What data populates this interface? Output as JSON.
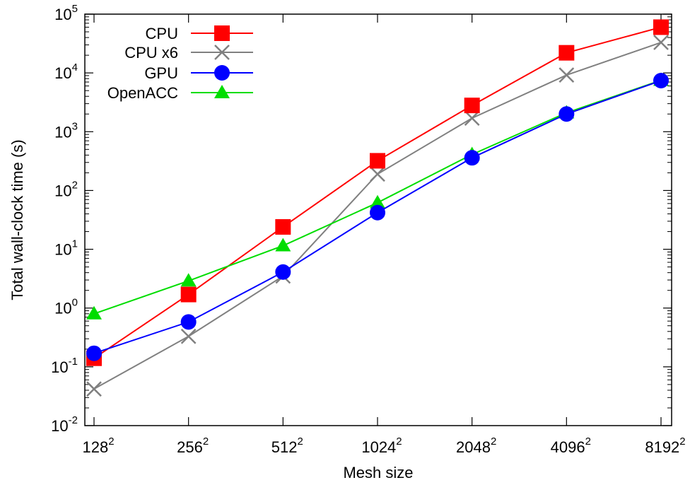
{
  "chart_data": {
    "type": "line",
    "title": "",
    "xlabel": "Mesh size",
    "ylabel": "Total wall-clock time (s)",
    "y_scale": "log",
    "ylim": [
      0.01,
      100000
    ],
    "grid": false,
    "legend_position": "top-left",
    "x_ticks": [
      {
        "base": "128",
        "sup": "2"
      },
      {
        "base": "256",
        "sup": "2"
      },
      {
        "base": "512",
        "sup": "2"
      },
      {
        "base": "1024",
        "sup": "2"
      },
      {
        "base": "2048",
        "sup": "2"
      },
      {
        "base": "4096",
        "sup": "2"
      },
      {
        "base": "8192",
        "sup": "2"
      }
    ],
    "y_ticks": [
      {
        "base": "10",
        "sup": "-2"
      },
      {
        "base": "10",
        "sup": "-1"
      },
      {
        "base": "10",
        "sup": "0"
      },
      {
        "base": "10",
        "sup": "1"
      },
      {
        "base": "10",
        "sup": "2"
      },
      {
        "base": "10",
        "sup": "3"
      },
      {
        "base": "10",
        "sup": "4"
      },
      {
        "base": "10",
        "sup": "5"
      }
    ],
    "series": [
      {
        "name": "CPU",
        "color": "#ff0000",
        "marker": "square",
        "values": [
          0.14,
          1.7,
          24,
          320,
          2800,
          22000,
          60000
        ]
      },
      {
        "name": "CPU x6",
        "color": "#808080",
        "marker": "x",
        "values": [
          0.042,
          0.33,
          3.5,
          190,
          1700,
          9200,
          33000
        ]
      },
      {
        "name": "GPU",
        "color": "#0000ff",
        "marker": "circle",
        "values": [
          0.17,
          0.58,
          4.1,
          42,
          360,
          2000,
          7400
        ]
      },
      {
        "name": "OpenACC",
        "color": "#00dd00",
        "marker": "triangle",
        "values": [
          0.8,
          2.9,
          11.5,
          62,
          410,
          2100,
          7500
        ]
      }
    ]
  }
}
